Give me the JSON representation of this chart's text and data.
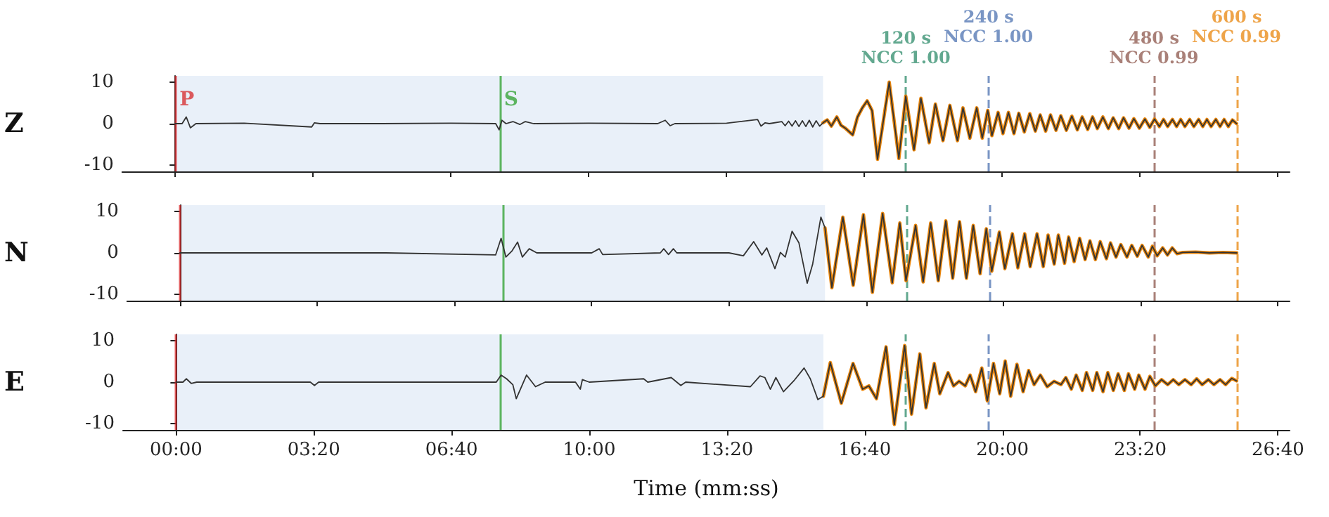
{
  "chart_data": [
    {
      "type": "line",
      "ylabel": "Z",
      "xlim": [
        -77,
        1617
      ],
      "ylim": [
        -11.5,
        11.5
      ],
      "yticks": [
        -10,
        0,
        10
      ],
      "xticks": [
        {
          "value": 0,
          "label": null
        },
        {
          "value": 200,
          "label": null
        },
        {
          "value": 400,
          "label": null
        },
        {
          "value": 600,
          "label": null
        },
        {
          "value": 800,
          "label": null
        },
        {
          "value": 1000,
          "label": null
        },
        {
          "value": 1200,
          "label": null
        },
        {
          "value": 1400,
          "label": null
        },
        {
          "value": 1600,
          "label": null
        }
      ],
      "tick_labels": "y",
      "marker": "none",
      "bands": [
        {
          "axis": "x",
          "from": 0,
          "to": 940,
          "color": "#e9f0f9"
        }
      ],
      "ref_lines": [
        {
          "axis": "x",
          "value": 0,
          "label": "P",
          "color": "#d62728",
          "line_style": "solid"
        },
        {
          "axis": "x",
          "value": 471,
          "label": "S",
          "color": "#2ca02c",
          "line_style": "solid"
        },
        {
          "axis": "x",
          "value": 1060,
          "label": "120 s\nNCC 1.00",
          "color": "#2e8b6a",
          "line_style": "dashed"
        },
        {
          "axis": "x",
          "value": 1180,
          "label": "240 s\nNCC 1.00",
          "color": "#4c72b0",
          "line_style": "dashed"
        },
        {
          "axis": "x",
          "value": 1420,
          "label": "480 s\nNCC 0.99",
          "color": "#8c564b",
          "line_style": "dashed"
        },
        {
          "axis": "x",
          "value": 1540,
          "label": "600 s\nNCC 0.99",
          "color": "#e8850c",
          "line_style": "dashed"
        }
      ],
      "series": [
        {
          "color": "#333333",
          "x": [
            0,
            10,
            16,
            22,
            30,
            100,
            198,
            202,
            210,
            300,
            400,
            465,
            470,
            474,
            480,
            490,
            500,
            508,
            520,
            600,
            700,
            711,
            718,
            725,
            800,
            845,
            850,
            856,
            862,
            880,
            885,
            890,
            895,
            900,
            905,
            910,
            915,
            920,
            925,
            930,
            935,
            940,
            946,
            952,
            960,
            966,
            973,
            983,
            990,
            997,
            1004,
            1011,
            1019,
            1036,
            1050,
            1060,
            1072,
            1082,
            1094,
            1103,
            1114,
            1124,
            1135,
            1143,
            1153,
            1163,
            1171,
            1179,
            1185,
            1194,
            1201,
            1209,
            1217,
            1224,
            1232,
            1240,
            1248,
            1255,
            1263,
            1270,
            1278,
            1285,
            1293,
            1301,
            1309,
            1316,
            1324,
            1331,
            1338,
            1346,
            1354,
            1361,
            1369,
            1376,
            1384,
            1391,
            1399,
            1407,
            1414,
            1421,
            1428,
            1434,
            1440,
            1447,
            1453,
            1459,
            1465,
            1472,
            1478,
            1485,
            1491,
            1497,
            1503,
            1510,
            1516,
            1522,
            1528,
            1534,
            1540
          ],
          "values": [
            0,
            0,
            1.6,
            -1,
            0,
            0.1,
            -0.8,
            0.2,
            0,
            0,
            0.1,
            0,
            -1.5,
            0.8,
            0,
            0.5,
            -0.2,
            0.5,
            0,
            0.1,
            0,
            0.8,
            -0.5,
            0,
            0.1,
            1,
            -0.6,
            0.2,
            0,
            0.5,
            -0.5,
            0.6,
            -0.6,
            0.7,
            -0.7,
            0.7,
            -0.7,
            0.8,
            -0.8,
            0.7,
            -0.6,
            0.2,
            0.9,
            -0.6,
            1.6,
            -0.4,
            -1.2,
            -2.7,
            1.6,
            3.8,
            5.5,
            3.2,
            -8.6,
            10,
            -8.4,
            6.6,
            -6.3,
            6.1,
            -4.6,
            4.7,
            -4.1,
            4.4,
            -4.1,
            3.8,
            -3.5,
            3.8,
            -3.5,
            3.2,
            -2.9,
            2.7,
            -2.4,
            2.7,
            -2.4,
            2.5,
            -2.0,
            2.4,
            -1.8,
            2.1,
            -1.8,
            2.1,
            -1.6,
            1.9,
            -1.6,
            1.8,
            -1.5,
            1.6,
            -1.4,
            1.6,
            -1.2,
            1.6,
            -1.2,
            1.4,
            -1.2,
            1.4,
            -1.1,
            1.2,
            -1.1,
            1.1,
            -0.9,
            1.1,
            -0.7,
            1.0,
            -0.7,
            1.0,
            -0.7,
            1.0,
            -0.7,
            1.0,
            -0.7,
            1.0,
            -0.7,
            1.0,
            -0.7,
            1.0,
            -0.7,
            1.0,
            -0.7,
            0.9,
            0
          ]
        },
        {
          "color": "#e8850c",
          "x": [
            940,
            946,
            952,
            960,
            966,
            973,
            983,
            990,
            997,
            1004,
            1011,
            1019,
            1036,
            1050,
            1060,
            1072,
            1082,
            1094,
            1103,
            1114,
            1124,
            1135,
            1143,
            1153,
            1163,
            1171,
            1179,
            1185,
            1194,
            1201,
            1209,
            1217,
            1224,
            1232,
            1240,
            1248,
            1255,
            1263,
            1270,
            1278,
            1285,
            1293,
            1301,
            1309,
            1316,
            1324,
            1331,
            1338,
            1346,
            1354,
            1361,
            1369,
            1376,
            1384,
            1391,
            1399,
            1407,
            1414,
            1421,
            1428,
            1434,
            1440,
            1447,
            1453,
            1459,
            1465,
            1472,
            1478,
            1485,
            1491,
            1497,
            1503,
            1510,
            1516,
            1522,
            1528,
            1534,
            1540
          ],
          "values": [
            0.2,
            0.9,
            -0.6,
            1.6,
            -0.4,
            -1.2,
            -2.7,
            1.6,
            3.8,
            5.5,
            3.2,
            -8.6,
            10,
            -8.4,
            6.6,
            -6.3,
            6.1,
            -4.6,
            4.7,
            -4.1,
            4.4,
            -4.1,
            3.8,
            -3.5,
            3.8,
            -3.5,
            3.2,
            -2.9,
            2.7,
            -2.4,
            2.7,
            -2.4,
            2.5,
            -2.0,
            2.4,
            -1.8,
            2.1,
            -1.8,
            2.1,
            -1.6,
            1.9,
            -1.6,
            1.8,
            -1.5,
            1.6,
            -1.4,
            1.6,
            -1.2,
            1.6,
            -1.2,
            1.4,
            -1.2,
            1.4,
            -1.1,
            1.2,
            -1.1,
            1.1,
            -0.9,
            1.1,
            -0.7,
            1.0,
            -0.7,
            1.0,
            -0.7,
            1.0,
            -0.7,
            1.0,
            -0.7,
            1.0,
            -0.7,
            1.0,
            -0.7,
            1.0,
            -0.7,
            1.0,
            -0.7,
            0.9,
            0
          ]
        }
      ]
    },
    {
      "type": "line",
      "ylabel": "N",
      "xlim": [
        -77,
        1617
      ],
      "ylim": [
        -11.5,
        11.5
      ],
      "yticks": [
        -10,
        0,
        10
      ],
      "xticks": [
        {
          "value": 0,
          "label": null
        },
        {
          "value": 200,
          "label": null
        },
        {
          "value": 400,
          "label": null
        },
        {
          "value": 600,
          "label": null
        },
        {
          "value": 800,
          "label": null
        },
        {
          "value": 1000,
          "label": null
        },
        {
          "value": 1200,
          "label": null
        },
        {
          "value": 1400,
          "label": null
        },
        {
          "value": 1600,
          "label": null
        }
      ],
      "tick_labels": "y",
      "marker": "none",
      "bands": [
        {
          "axis": "x",
          "from": 0,
          "to": 940,
          "color": "#e9f0f9"
        }
      ],
      "ref_lines": [
        {
          "axis": "x",
          "value": 0,
          "color": "#d62728",
          "line_style": "solid"
        },
        {
          "axis": "x",
          "value": 471,
          "color": "#2ca02c",
          "line_style": "solid"
        },
        {
          "axis": "x",
          "value": 1060,
          "color": "#2e8b6a",
          "line_style": "dashed"
        },
        {
          "axis": "x",
          "value": 1180,
          "color": "#4c72b0",
          "line_style": "dashed"
        },
        {
          "axis": "x",
          "value": 1420,
          "color": "#8c564b",
          "line_style": "dashed"
        },
        {
          "axis": "x",
          "value": 1540,
          "color": "#e8850c",
          "line_style": "dashed"
        }
      ],
      "series": [
        {
          "color": "#333333",
          "x": [
            0,
            100,
            300,
            460,
            468,
            475,
            484,
            492,
            499,
            509,
            520,
            600,
            611,
            616,
            700,
            705,
            712,
            719,
            724,
            800,
            821,
            836,
            848,
            855,
            867,
            875,
            882,
            892,
            902,
            914,
            922,
            934,
            940,
            950,
            966,
            981,
            996,
            1009,
            1024,
            1038,
            1049,
            1058,
            1072,
            1083,
            1094,
            1105,
            1116,
            1126,
            1136,
            1146,
            1156,
            1166,
            1175,
            1183,
            1194,
            1202,
            1213,
            1221,
            1231,
            1239,
            1249,
            1258,
            1265,
            1274,
            1280,
            1289,
            1295,
            1303,
            1311,
            1319,
            1326,
            1334,
            1341,
            1350,
            1356,
            1364,
            1371,
            1380,
            1387,
            1395,
            1402,
            1411,
            1417,
            1424,
            1432,
            1439,
            1446,
            1453,
            1461,
            1480,
            1500,
            1520,
            1540
          ],
          "values": [
            0,
            0,
            0,
            -0.5,
            3.5,
            -1,
            0.5,
            2.6,
            -1,
            1,
            0,
            0,
            1,
            -0.4,
            0,
            1,
            -0.4,
            1,
            0,
            0,
            -0.7,
            2.7,
            -0.5,
            1.2,
            -3.8,
            0.1,
            -1.0,
            5.2,
            2.4,
            -7.3,
            -2.7,
            8.6,
            6.0,
            -8.4,
            8.6,
            -7.8,
            9.2,
            -9.5,
            9.5,
            -7.2,
            7.2,
            -6.7,
            6.6,
            -7.0,
            7.2,
            -6.7,
            7.7,
            -6.1,
            7.5,
            -6.1,
            6.6,
            -5.0,
            5.8,
            -4.4,
            5.0,
            -3.8,
            4.6,
            -3.6,
            4.6,
            -3.3,
            4.6,
            -3.3,
            4.3,
            -2.7,
            4.3,
            -2.5,
            3.8,
            -2.1,
            3.5,
            -1.6,
            2.9,
            -1.6,
            2.7,
            -1.4,
            2.4,
            -1.0,
            2.0,
            -1.0,
            1.8,
            -0.8,
            1.8,
            -1.0,
            1.6,
            -0.7,
            1.2,
            -0.5,
            1.2,
            -0.2,
            0.1,
            0.2,
            0,
            0.1,
            0
          ]
        },
        {
          "color": "#e8850c",
          "x": [
            940,
            950,
            966,
            981,
            996,
            1009,
            1024,
            1038,
            1049,
            1058,
            1072,
            1083,
            1094,
            1105,
            1116,
            1126,
            1136,
            1146,
            1156,
            1166,
            1175,
            1183,
            1194,
            1202,
            1213,
            1221,
            1231,
            1239,
            1249,
            1258,
            1265,
            1274,
            1280,
            1289,
            1295,
            1303,
            1311,
            1319,
            1326,
            1334,
            1341,
            1350,
            1356,
            1364,
            1371,
            1380,
            1387,
            1395,
            1402,
            1411,
            1417,
            1424,
            1432,
            1439,
            1446,
            1453,
            1461,
            1480,
            1500,
            1520,
            1540
          ],
          "values": [
            6.0,
            -8.4,
            8.6,
            -7.8,
            9.2,
            -9.5,
            9.5,
            -7.2,
            7.2,
            -6.7,
            6.6,
            -7.0,
            7.2,
            -6.7,
            7.7,
            -6.1,
            7.5,
            -6.1,
            6.6,
            -5.0,
            5.8,
            -4.4,
            5.0,
            -3.8,
            4.6,
            -3.6,
            4.6,
            -3.3,
            4.6,
            -3.3,
            4.3,
            -2.7,
            4.3,
            -2.5,
            3.8,
            -2.1,
            3.5,
            -1.6,
            2.9,
            -1.6,
            2.7,
            -1.4,
            2.4,
            -1.0,
            2.0,
            -1.0,
            1.8,
            -0.8,
            1.8,
            -1.0,
            1.6,
            -0.7,
            1.2,
            -0.5,
            1.2,
            -0.2,
            0.1,
            0.2,
            0,
            0.1,
            0
          ]
        }
      ]
    },
    {
      "type": "line",
      "ylabel": "E",
      "xlabel": "Time (mm:ss)",
      "xlim": [
        -77,
        1617
      ],
      "ylim": [
        -11.5,
        11.5
      ],
      "yticks": [
        -10,
        0,
        10
      ],
      "xticks": [
        {
          "value": 0,
          "label": "00:00"
        },
        {
          "value": 200,
          "label": "03:20"
        },
        {
          "value": 400,
          "label": "06:40"
        },
        {
          "value": 600,
          "label": "10:00"
        },
        {
          "value": 800,
          "label": "13:20"
        },
        {
          "value": 1000,
          "label": "16:40"
        },
        {
          "value": 1200,
          "label": "20:00"
        },
        {
          "value": 1400,
          "label": "23:20"
        },
        {
          "value": 1600,
          "label": "26:40"
        }
      ],
      "marker": "none",
      "bands": [
        {
          "axis": "x",
          "from": 0,
          "to": 940,
          "color": "#e9f0f9"
        }
      ],
      "ref_lines": [
        {
          "axis": "x",
          "value": 0,
          "color": "#d62728",
          "line_style": "solid"
        },
        {
          "axis": "x",
          "value": 471,
          "color": "#2ca02c",
          "line_style": "solid"
        },
        {
          "axis": "x",
          "value": 1060,
          "color": "#2e8b6a",
          "line_style": "dashed"
        },
        {
          "axis": "x",
          "value": 1180,
          "color": "#4c72b0",
          "line_style": "dashed"
        },
        {
          "axis": "x",
          "value": 1420,
          "color": "#8c564b",
          "line_style": "dashed"
        },
        {
          "axis": "x",
          "value": 1540,
          "color": "#e8850c",
          "line_style": "dashed"
        }
      ],
      "series": [
        {
          "color": "#333333",
          "x": [
            0,
            10,
            15,
            22,
            30,
            195,
            201,
            207,
            300,
            400,
            465,
            472,
            480,
            489,
            494,
            509,
            522,
            536,
            580,
            587,
            590,
            600,
            679,
            685,
            719,
            733,
            740,
            834,
            848,
            855,
            863,
            871,
            882,
            897,
            912,
            921,
            932,
            940,
            950,
            966,
            983,
            997,
            1006,
            1017,
            1031,
            1043,
            1058,
            1068,
            1080,
            1089,
            1101,
            1109,
            1121,
            1129,
            1137,
            1146,
            1153,
            1161,
            1170,
            1178,
            1187,
            1196,
            1204,
            1212,
            1221,
            1230,
            1238,
            1246,
            1255,
            1265,
            1275,
            1285,
            1292,
            1300,
            1307,
            1316,
            1322,
            1331,
            1337,
            1346,
            1353,
            1361,
            1368,
            1377,
            1383,
            1392,
            1398,
            1407,
            1414,
            1422,
            1431,
            1440,
            1448,
            1456,
            1465,
            1474,
            1482,
            1490,
            1499,
            1507,
            1516,
            1524,
            1533,
            1540
          ],
          "values": [
            0,
            0,
            0.8,
            -0.3,
            0,
            0,
            -0.8,
            0,
            0,
            0,
            0,
            1.7,
            0.8,
            -0.6,
            -4.0,
            1.7,
            -1.1,
            0,
            0,
            -1.7,
            0.6,
            0,
            0.8,
            0,
            1.1,
            -0.8,
            0,
            -1.1,
            1.5,
            1.1,
            -1.7,
            1.1,
            -2.3,
            0.3,
            3.4,
            0.8,
            -4.2,
            -3.4,
            4.7,
            -5.1,
            4.5,
            -1.7,
            -0.9,
            -4.0,
            8.5,
            -10.2,
            8.8,
            -7.7,
            6.8,
            -6.2,
            4.5,
            -2.8,
            2.3,
            -0.9,
            0.2,
            -0.9,
            1.7,
            -2.3,
            3.4,
            -4.5,
            4.5,
            -2.8,
            5.1,
            -3.4,
            4.3,
            -2.3,
            2.8,
            -0.6,
            1.7,
            -1.1,
            0.2,
            -0.6,
            1.1,
            -1.7,
            1.7,
            -2.0,
            2.3,
            -2.0,
            2.3,
            -2.3,
            2.3,
            -2.0,
            2.0,
            -2.0,
            2.0,
            -1.7,
            1.7,
            -1.7,
            1.4,
            -0.9,
            0.6,
            -0.6,
            0.6,
            -0.6,
            0.6,
            -0.6,
            0.8,
            -0.6,
            0.6,
            -0.6,
            0.6,
            -0.6,
            0.9,
            0.3
          ]
        },
        {
          "color": "#e8850c",
          "x": [
            940,
            950,
            966,
            983,
            997,
            1006,
            1017,
            1031,
            1043,
            1058,
            1068,
            1080,
            1089,
            1101,
            1109,
            1121,
            1129,
            1137,
            1146,
            1153,
            1161,
            1170,
            1178,
            1187,
            1196,
            1204,
            1212,
            1221,
            1230,
            1238,
            1246,
            1255,
            1265,
            1275,
            1285,
            1292,
            1300,
            1307,
            1316,
            1322,
            1331,
            1337,
            1346,
            1353,
            1361,
            1368,
            1377,
            1383,
            1392,
            1398,
            1407,
            1414,
            1422,
            1431,
            1440,
            1448,
            1456,
            1465,
            1474,
            1482,
            1490,
            1499,
            1507,
            1516,
            1524,
            1533,
            1540
          ],
          "values": [
            -3.4,
            4.7,
            -5.1,
            4.5,
            -1.7,
            -0.9,
            -4.0,
            8.5,
            -10.2,
            8.8,
            -7.7,
            6.8,
            -6.2,
            4.5,
            -2.8,
            2.3,
            -0.9,
            0.2,
            -0.9,
            1.7,
            -2.3,
            3.4,
            -4.5,
            4.5,
            -2.8,
            5.1,
            -3.4,
            4.3,
            -2.3,
            2.8,
            -0.6,
            1.7,
            -1.1,
            0.2,
            -0.6,
            1.1,
            -1.7,
            1.7,
            -2.0,
            2.3,
            -2.0,
            2.3,
            -2.3,
            2.3,
            -2.0,
            2.0,
            -2.0,
            2.0,
            -1.7,
            1.7,
            -1.7,
            1.4,
            -0.9,
            0.6,
            -0.6,
            0.6,
            -0.6,
            0.6,
            -0.6,
            0.8,
            -0.6,
            0.6,
            -0.6,
            0.6,
            -0.6,
            0.9,
            0.3
          ]
        }
      ]
    }
  ]
}
